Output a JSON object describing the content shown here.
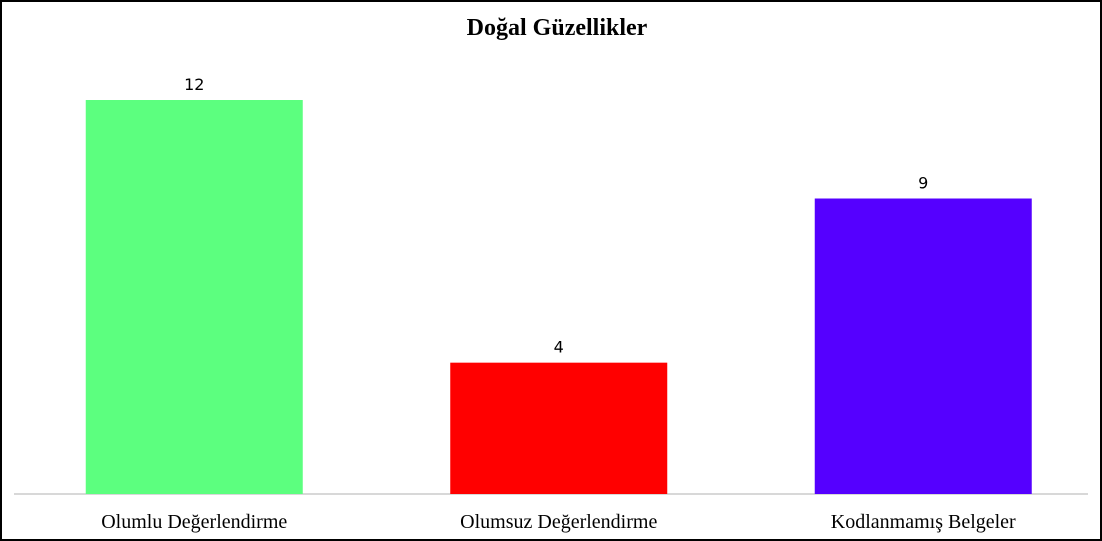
{
  "chart_data": {
    "type": "bar",
    "title": "Doğal Güzellikler",
    "categories": [
      "Olumlu Değerlendirme",
      "Olumsuz Değerlendirme",
      "Kodlanmamış Belgeler"
    ],
    "values": [
      12,
      4,
      9
    ],
    "colors": [
      "#5cff7f",
      "#ff0000",
      "#5500ff"
    ]
  }
}
